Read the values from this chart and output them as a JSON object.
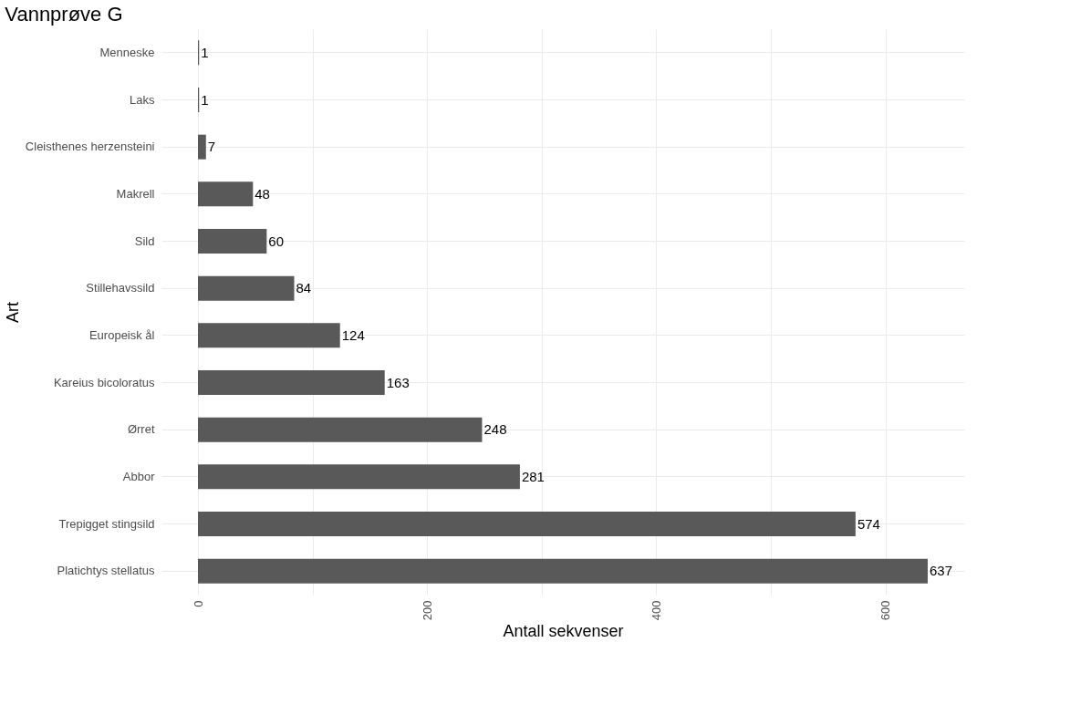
{
  "chart_data": {
    "type": "bar",
    "orientation": "horizontal",
    "title": "Vannprøve G",
    "xlabel": "Antall sekvenser",
    "ylabel": "Art",
    "categories": [
      "Menneske",
      "Laks",
      "Cleisthenes herzensteini",
      "Makrell",
      "Sild",
      "Stillehavssild",
      "Europeisk ål",
      "Kareius bicoloratus",
      "Ørret",
      "Abbor",
      "Trepigget stingsild",
      "Platichtys stellatus"
    ],
    "values": [
      1,
      1,
      7,
      48,
      60,
      84,
      124,
      163,
      248,
      281,
      574,
      637
    ],
    "color": "#595959",
    "xlim": [
      -31.85,
      668.85
    ],
    "xticks": [
      0,
      {
        "value": 100,
        "label": null
      },
      200,
      {
        "value": 300,
        "label": null
      },
      400,
      {
        "value": 500,
        "label": null
      },
      600
    ],
    "grid": true,
    "data_labels": true
  }
}
